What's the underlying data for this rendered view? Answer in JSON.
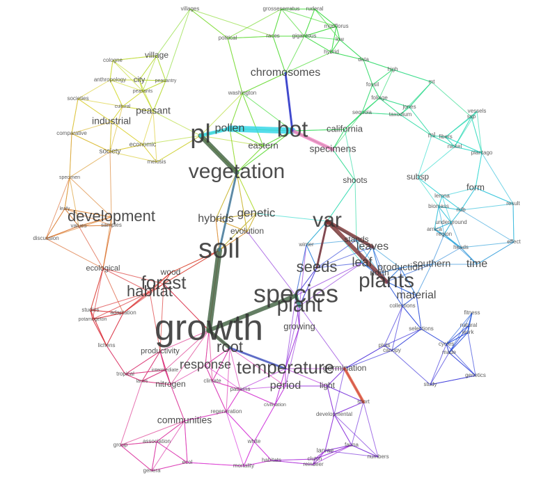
{
  "nodes": [
    {
      "label": "growth"
    },
    {
      "label": "species"
    },
    {
      "label": "soil"
    },
    {
      "label": "plant"
    },
    {
      "label": "vegetation"
    },
    {
      "label": "plants"
    },
    {
      "label": "bot"
    },
    {
      "label": "pl"
    },
    {
      "label": "var"
    },
    {
      "label": "temperature"
    },
    {
      "label": "forest"
    },
    {
      "label": "habitat"
    },
    {
      "label": "development"
    },
    {
      "label": "seeds"
    },
    {
      "label": "chromosomes"
    },
    {
      "label": "genetic"
    },
    {
      "label": "hybrids"
    },
    {
      "label": "pollen"
    },
    {
      "label": "california"
    },
    {
      "label": "specimens"
    },
    {
      "label": "eastern"
    },
    {
      "label": "shoots"
    },
    {
      "label": "leaves"
    },
    {
      "label": "leaf"
    },
    {
      "label": "material"
    },
    {
      "label": "southern"
    },
    {
      "label": "time"
    },
    {
      "label": "form"
    },
    {
      "label": "root"
    },
    {
      "label": "response"
    },
    {
      "label": "period"
    },
    {
      "label": "communities"
    },
    {
      "label": "nitrogen"
    },
    {
      "label": "industrial"
    },
    {
      "label": "peasant"
    },
    {
      "label": "village"
    },
    {
      "label": "city"
    },
    {
      "label": "society"
    },
    {
      "label": "economic"
    },
    {
      "label": "north"
    },
    {
      "label": "production"
    },
    {
      "label": "germination"
    },
    {
      "label": "light"
    },
    {
      "label": "growing"
    },
    {
      "label": "subsp"
    },
    {
      "label": "evolution"
    },
    {
      "label": "wood"
    },
    {
      "label": "ecological"
    },
    {
      "label": "habitats"
    },
    {
      "label": "larvae"
    },
    {
      "label": "fauna"
    },
    {
      "label": "numbers"
    },
    {
      "label": "genetics"
    },
    {
      "label": "study"
    },
    {
      "label": "fitness"
    },
    {
      "label": "natural"
    },
    {
      "label": "cycles"
    },
    {
      "label": "made"
    },
    {
      "label": "discussion"
    },
    {
      "label": "effect"
    },
    {
      "label": "result"
    },
    {
      "label": "villages"
    },
    {
      "label": "political"
    },
    {
      "label": "grosseserratus"
    },
    {
      "label": "ruderal"
    },
    {
      "label": "mudflorus"
    },
    {
      "label": "gigantous"
    },
    {
      "label": "races"
    },
    {
      "label": "hybrid"
    },
    {
      "label": "low"
    },
    {
      "label": "data"
    },
    {
      "label": "high"
    },
    {
      "label": "fossil"
    },
    {
      "label": "foliage"
    },
    {
      "label": "sequoia"
    },
    {
      "label": "taxodium"
    },
    {
      "label": "jones"
    },
    {
      "label": "vessels"
    },
    {
      "label": "fibers"
    },
    {
      "label": "nickel"
    },
    {
      "label": "plantago"
    },
    {
      "label": "mt"
    },
    {
      "label": "ml"
    },
    {
      "label": "ssp"
    },
    {
      "label": "cologne"
    },
    {
      "label": "anthropology"
    },
    {
      "label": "societies"
    },
    {
      "label": "comparative"
    },
    {
      "label": "peasantry"
    },
    {
      "label": "peasants"
    },
    {
      "label": "cultural"
    },
    {
      "label": "meiosis"
    },
    {
      "label": "values"
    },
    {
      "label": "samples"
    },
    {
      "label": "leafy"
    },
    {
      "label": "specimen"
    },
    {
      "label": "lichens"
    },
    {
      "label": "tropical"
    },
    {
      "label": "lanes"
    },
    {
      "label": "group"
    },
    {
      "label": "association"
    },
    {
      "label": "genera"
    },
    {
      "label": "ecol"
    },
    {
      "label": "mortality"
    },
    {
      "label": "reindeer"
    },
    {
      "label": "clutch"
    },
    {
      "label": "short"
    },
    {
      "label": "canopy"
    },
    {
      "label": "plots"
    },
    {
      "label": "collections"
    },
    {
      "label": "selections"
    },
    {
      "label": "heads"
    },
    {
      "label": "region"
    },
    {
      "label": "underground"
    },
    {
      "label": "arnica"
    },
    {
      "label": "ridb"
    },
    {
      "label": "work"
    },
    {
      "label": "adaptation"
    },
    {
      "label": "studies"
    },
    {
      "label": "potamogeton"
    },
    {
      "label": "productivity"
    },
    {
      "label": "intermediate"
    },
    {
      "label": "winter"
    },
    {
      "label": "stands"
    },
    {
      "label": "washington"
    },
    {
      "label": "regeneration"
    },
    {
      "label": "civilisation"
    },
    {
      "label": "developmental"
    },
    {
      "label": "patterns"
    },
    {
      "label": "climate"
    },
    {
      "label": "white"
    },
    {
      "label": "lemna"
    },
    {
      "label": "biomass"
    }
  ]
}
